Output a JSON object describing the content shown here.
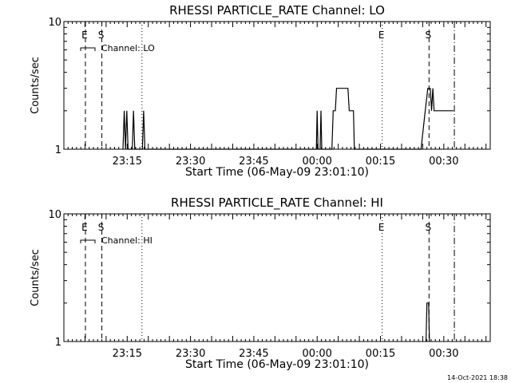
{
  "footer": {
    "timestamp": "14-Oct-2021 18:38"
  },
  "chart_data": [
    {
      "type": "line",
      "scale": "log-y",
      "title": "RHESSI PARTICLE_RATE Channel: LO",
      "xlabel": "Start Time (06-May-09 23:01:10)",
      "ylabel": "Counts/sec",
      "xlim_minutes_after_23_00": [
        0,
        101
      ],
      "ylim": [
        1,
        10
      ],
      "y_tick_labels": [
        {
          "value": 1,
          "label": "1"
        },
        {
          "value": 10,
          "label": "10"
        }
      ],
      "x_tick_labels": [
        {
          "t": 15,
          "label": "23:15"
        },
        {
          "t": 30,
          "label": "23:30"
        },
        {
          "t": 45,
          "label": "23:45"
        },
        {
          "t": 60,
          "label": "00:00"
        },
        {
          "t": 75,
          "label": "00:15"
        },
        {
          "t": 90,
          "label": "00:30"
        }
      ],
      "legend_label": "Channel: LO",
      "markers": [
        {
          "t": 5.1,
          "style": "dash",
          "label": "E"
        },
        {
          "t": 9.0,
          "style": "dash",
          "label": "S"
        },
        {
          "t": 18.5,
          "style": "dot",
          "label": ""
        },
        {
          "t": 75.4,
          "style": "dot",
          "label": "E"
        },
        {
          "t": 86.5,
          "style": "dash",
          "label": "S"
        },
        {
          "t": 92.5,
          "style": "dashdot",
          "label": ""
        }
      ],
      "series": [
        {
          "points": [
            [
              14.0,
              1
            ],
            [
              14.3,
              2
            ],
            [
              14.6,
              1
            ],
            [
              14.9,
              2
            ],
            [
              15.2,
              1
            ],
            [
              16.2,
              1
            ],
            [
              16.5,
              2
            ],
            [
              16.8,
              1
            ],
            [
              18.6,
              1
            ],
            [
              18.9,
              2
            ],
            [
              19.2,
              1
            ],
            [
              59.8,
              1
            ],
            [
              60.0,
              2
            ],
            [
              60.2,
              1
            ],
            [
              60.7,
              1
            ],
            [
              60.9,
              2
            ],
            [
              61.1,
              1
            ],
            [
              63.5,
              1
            ],
            [
              63.8,
              2
            ],
            [
              64.3,
              2
            ],
            [
              64.6,
              3
            ],
            [
              67.3,
              3
            ],
            [
              67.6,
              2
            ],
            [
              68.6,
              2
            ],
            [
              68.8,
              1
            ],
            [
              84.6,
              1
            ],
            [
              85.6,
              2
            ],
            [
              86.2,
              3
            ],
            [
              86.8,
              3
            ],
            [
              87.1,
              2
            ],
            [
              87.4,
              3
            ],
            [
              87.7,
              2
            ],
            [
              92.3,
              2
            ]
          ]
        }
      ]
    },
    {
      "type": "line",
      "scale": "log-y",
      "title": "RHESSI PARTICLE_RATE Channel: HI",
      "xlabel": "Start Time (06-May-09 23:01:10)",
      "ylabel": "Counts/sec",
      "xlim_minutes_after_23_00": [
        0,
        101
      ],
      "ylim": [
        1,
        10
      ],
      "y_tick_labels": [
        {
          "value": 1,
          "label": "1"
        },
        {
          "value": 10,
          "label": "10"
        }
      ],
      "x_tick_labels": [
        {
          "t": 15,
          "label": "23:15"
        },
        {
          "t": 30,
          "label": "23:30"
        },
        {
          "t": 45,
          "label": "23:45"
        },
        {
          "t": 60,
          "label": "00:00"
        },
        {
          "t": 75,
          "label": "00:15"
        },
        {
          "t": 90,
          "label": "00:30"
        }
      ],
      "legend_label": "Channel: HI",
      "markers": [
        {
          "t": 5.1,
          "style": "dash",
          "label": "E"
        },
        {
          "t": 9.0,
          "style": "dash",
          "label": "S"
        },
        {
          "t": 18.5,
          "style": "dot",
          "label": ""
        },
        {
          "t": 75.4,
          "style": "dot",
          "label": "E"
        },
        {
          "t": 86.5,
          "style": "dash",
          "label": "S"
        },
        {
          "t": 92.5,
          "style": "dashdot",
          "label": ""
        }
      ],
      "series": [
        {
          "points": [
            [
              85.8,
              1
            ],
            [
              86.0,
              2
            ],
            [
              86.4,
              2
            ],
            [
              86.6,
              1
            ]
          ]
        }
      ]
    }
  ]
}
